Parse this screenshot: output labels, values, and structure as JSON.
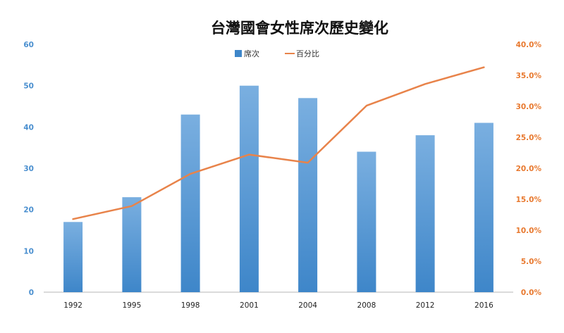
{
  "chart_data": {
    "type": "bar",
    "title": "台灣國會女性席次歷史變化",
    "categories": [
      "1992",
      "1995",
      "1998",
      "2001",
      "2004",
      "2008",
      "2012",
      "2016"
    ],
    "series": [
      {
        "name": "席次",
        "type": "bar",
        "axis": "left",
        "values": [
          17,
          23,
          43,
          50,
          47,
          34,
          38,
          41
        ]
      },
      {
        "name": "百分比",
        "type": "line",
        "axis": "right",
        "values": [
          0.118,
          0.139,
          0.191,
          0.222,
          0.209,
          0.301,
          0.336,
          0.363
        ]
      }
    ],
    "y_left": {
      "ylim": [
        0,
        60
      ],
      "ticks": [
        0,
        10,
        20,
        30,
        40,
        50,
        60
      ],
      "tick_labels": [
        "0",
        "10",
        "20",
        "30",
        "40",
        "50",
        "60"
      ]
    },
    "y_right": {
      "ylim": [
        0,
        0.4
      ],
      "ticks": [
        0,
        0.05,
        0.1,
        0.15,
        0.2,
        0.25,
        0.3,
        0.35,
        0.4
      ],
      "tick_labels": [
        "0.0%",
        "5.0%",
        "10.0%",
        "15.0%",
        "20.0%",
        "25.0%",
        "30.0%",
        "35.0%",
        "40.0%"
      ]
    },
    "grid": false,
    "legend": "top-center",
    "colors": {
      "bar_top": "#7aafe0",
      "bar_bottom": "#3e86c9",
      "line": "#e8834a",
      "left_axis_text": "#4a8fcf",
      "right_axis_text": "#e8792f",
      "x_axis_text": "#222222",
      "title": "#111111",
      "axis_line": "#b5b5b5"
    }
  }
}
